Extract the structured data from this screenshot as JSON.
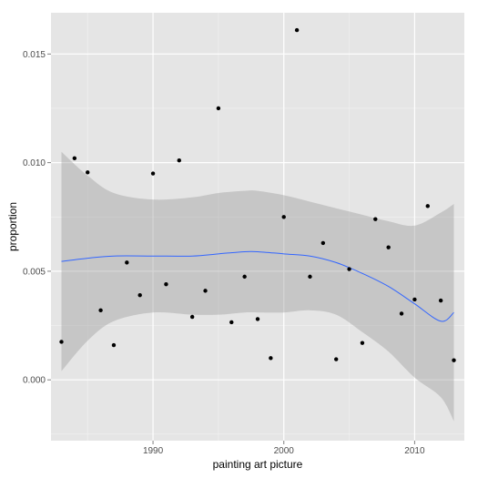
{
  "chart_data": {
    "type": "scatter",
    "title": "",
    "xlabel": "painting art picture",
    "ylabel": "proportion",
    "xlim": [
      1982.2,
      2013.8
    ],
    "ylim": [
      -0.0028,
      0.0169
    ],
    "x_ticks": [
      1990,
      2000,
      2010
    ],
    "x_tick_labels": [
      "1990",
      "2000",
      "2010"
    ],
    "y_ticks": [
      0.0,
      0.005,
      0.01,
      0.015
    ],
    "y_tick_labels": [
      "0.000",
      "0.005",
      "0.010",
      "0.015"
    ],
    "grid": true,
    "legend": "none",
    "colors": {
      "panel_background": "#e5e5e5",
      "grid_major": "#ffffff",
      "grid_minor": "#f2f2f2",
      "points": "#000000",
      "smooth_line": "#3366ff",
      "ribbon": "#999999"
    },
    "points": {
      "x": [
        1983,
        1984,
        1985,
        1986,
        1987,
        1988,
        1989,
        1990,
        1991,
        1992,
        1993,
        1994,
        1995,
        1996,
        1997,
        1998,
        1999,
        2000,
        2001,
        2002,
        2003,
        2004,
        2005,
        2006,
        2007,
        2008,
        2009,
        2010,
        2011,
        2012,
        2013
      ],
      "y": [
        0.00175,
        0.0102,
        0.00955,
        0.0032,
        0.0016,
        0.0054,
        0.0039,
        0.0095,
        0.0044,
        0.0101,
        0.0029,
        0.0041,
        0.0125,
        0.00265,
        0.00475,
        0.0028,
        0.001,
        0.0075,
        0.0161,
        0.00475,
        0.0063,
        0.00095,
        0.0051,
        0.0017,
        0.0074,
        0.0061,
        0.00305,
        0.0037,
        0.008,
        0.00365,
        0.0009
      ]
    },
    "smooth": {
      "x": [
        1983,
        1985,
        1987,
        1990,
        1993,
        1995,
        1997,
        1998,
        2000,
        2002,
        2004,
        2006,
        2008,
        2010,
        2012,
        2013
      ],
      "y": [
        0.00545,
        0.0056,
        0.0057,
        0.0057,
        0.0057,
        0.0058,
        0.0059,
        0.0059,
        0.0058,
        0.0057,
        0.0054,
        0.0049,
        0.0043,
        0.0035,
        0.0027,
        0.0031
      ],
      "ci_upper": [
        0.0105,
        0.0094,
        0.0086,
        0.0083,
        0.0084,
        0.0086,
        0.0087,
        0.0087,
        0.0085,
        0.0082,
        0.0079,
        0.0076,
        0.0073,
        0.0071,
        0.0077,
        0.0081
      ],
      "ci_lower": [
        0.0004,
        0.0018,
        0.0027,
        0.0031,
        0.003,
        0.003,
        0.0031,
        0.0031,
        0.0031,
        0.0032,
        0.003,
        0.0022,
        0.0013,
        0.0001,
        -0.0008,
        -0.0019
      ]
    }
  }
}
